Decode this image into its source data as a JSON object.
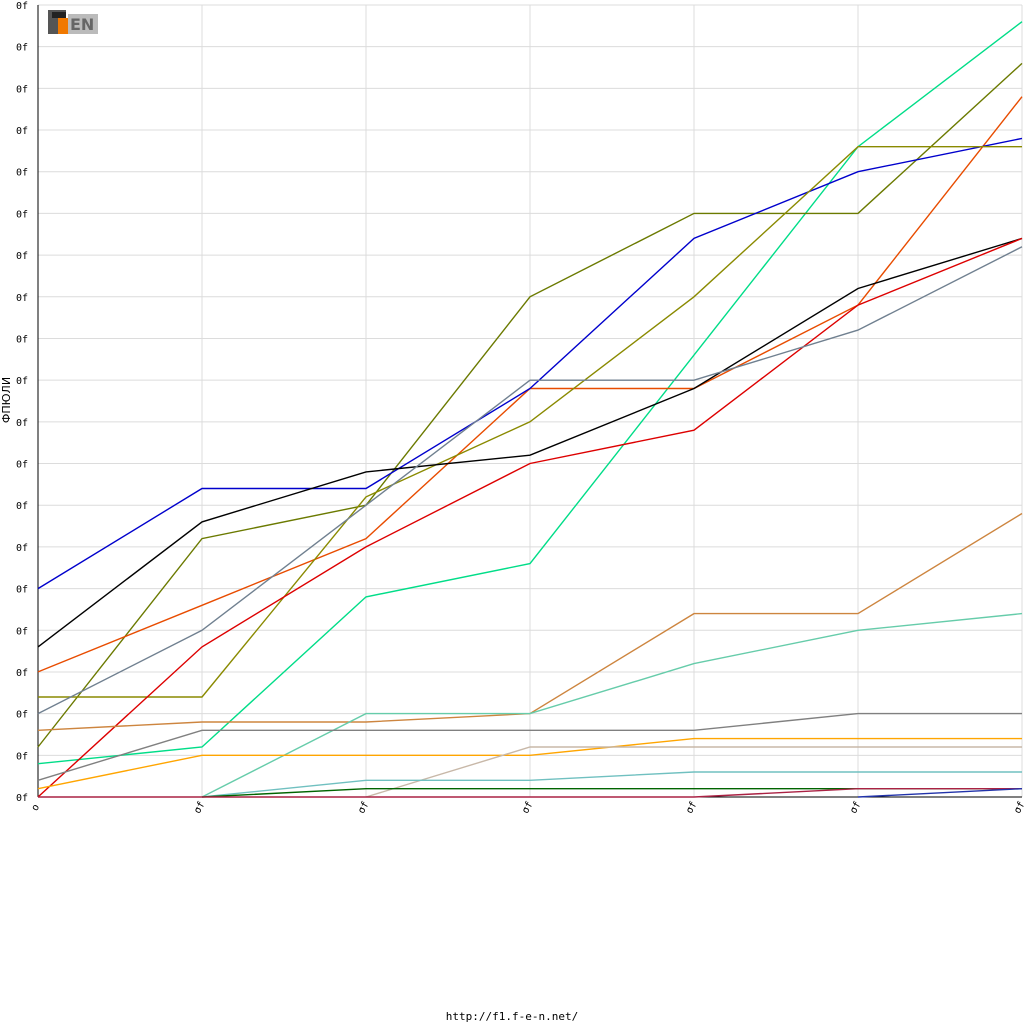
{
  "footer": {
    "url": "http://f1.f-e-n.net/"
  },
  "logo": {
    "text": "F1FEN"
  },
  "chart_data": {
    "type": "line",
    "title": "",
    "xlabel": "",
    "ylabel": "ФПЮЛИ",
    "ylim": [
      0,
      19
    ],
    "xlim": [
      0,
      6
    ],
    "grid": true,
    "legend": "none",
    "x": [
      0,
      1,
      2,
      3,
      4,
      5,
      6
    ],
    "x_tick_labels": [
      "o",
      "σf",
      "σf",
      "σf",
      "σf",
      "σf",
      "σf"
    ],
    "y_tick_labels": [
      "0f",
      "0f",
      "0f",
      "0f",
      "0f",
      "0f",
      "0f",
      "0f",
      "0f",
      "0f",
      "0f",
      "0f",
      "0f",
      "0f",
      "0f",
      "0f",
      "0f",
      "0f",
      "0f",
      "0f"
    ],
    "series": [
      {
        "color": "#00dd88",
        "values": [
          0.8,
          1.2,
          4.8,
          5.6,
          10.6,
          15.6,
          18.6
        ]
      },
      {
        "color": "#6b7a00",
        "values": [
          1.2,
          6.2,
          7.0,
          12.0,
          14.0,
          14.0,
          17.6
        ]
      },
      {
        "color": "#e84c00",
        "values": [
          3.0,
          4.6,
          6.2,
          9.8,
          9.8,
          11.8,
          16.8
        ]
      },
      {
        "color": "#0000cc",
        "values": [
          5.0,
          7.4,
          7.4,
          9.8,
          13.4,
          15.0,
          15.8
        ]
      },
      {
        "color": "#8a8a00",
        "values": [
          2.4,
          2.4,
          7.2,
          9.0,
          12.0,
          15.6,
          15.6
        ]
      },
      {
        "color": "#000000",
        "values": [
          3.6,
          6.6,
          7.8,
          8.2,
          9.8,
          12.2,
          13.4
        ]
      },
      {
        "color": "#dd0000",
        "values": [
          0.0,
          3.6,
          6.0,
          8.0,
          8.8,
          11.8,
          13.4
        ]
      },
      {
        "color": "#708090",
        "values": [
          2.0,
          4.0,
          7.0,
          10.0,
          10.0,
          11.2,
          13.2
        ]
      },
      {
        "color": "#cd853f",
        "values": [
          1.6,
          1.8,
          1.8,
          2.0,
          4.4,
          4.4,
          6.8
        ]
      },
      {
        "color": "#66ccaa",
        "values": [
          null,
          0.0,
          2.0,
          2.0,
          3.2,
          4.0,
          4.4
        ]
      },
      {
        "color": "#808080",
        "values": [
          0.4,
          1.6,
          1.6,
          1.6,
          1.6,
          2.0,
          2.0
        ]
      },
      {
        "color": "#ffa500",
        "values": [
          0.2,
          1.0,
          1.0,
          1.0,
          1.4,
          1.4,
          1.4
        ]
      },
      {
        "color": "#c8b8a8",
        "values": [
          null,
          null,
          0.0,
          1.2,
          1.2,
          1.2,
          1.2
        ]
      },
      {
        "color": "#70c0c0",
        "values": [
          null,
          0.0,
          0.4,
          0.4,
          0.6,
          0.6,
          0.6
        ]
      },
      {
        "color": "#006400",
        "values": [
          null,
          0.0,
          0.2,
          0.2,
          0.2,
          0.2,
          0.2
        ]
      },
      {
        "color": "#aa2244",
        "values": [
          0.0,
          0.0,
          0.0,
          0.0,
          0.0,
          0.2,
          0.2
        ]
      },
      {
        "color": "#2233aa",
        "values": [
          null,
          null,
          null,
          null,
          null,
          0.0,
          0.2
        ]
      }
    ]
  }
}
